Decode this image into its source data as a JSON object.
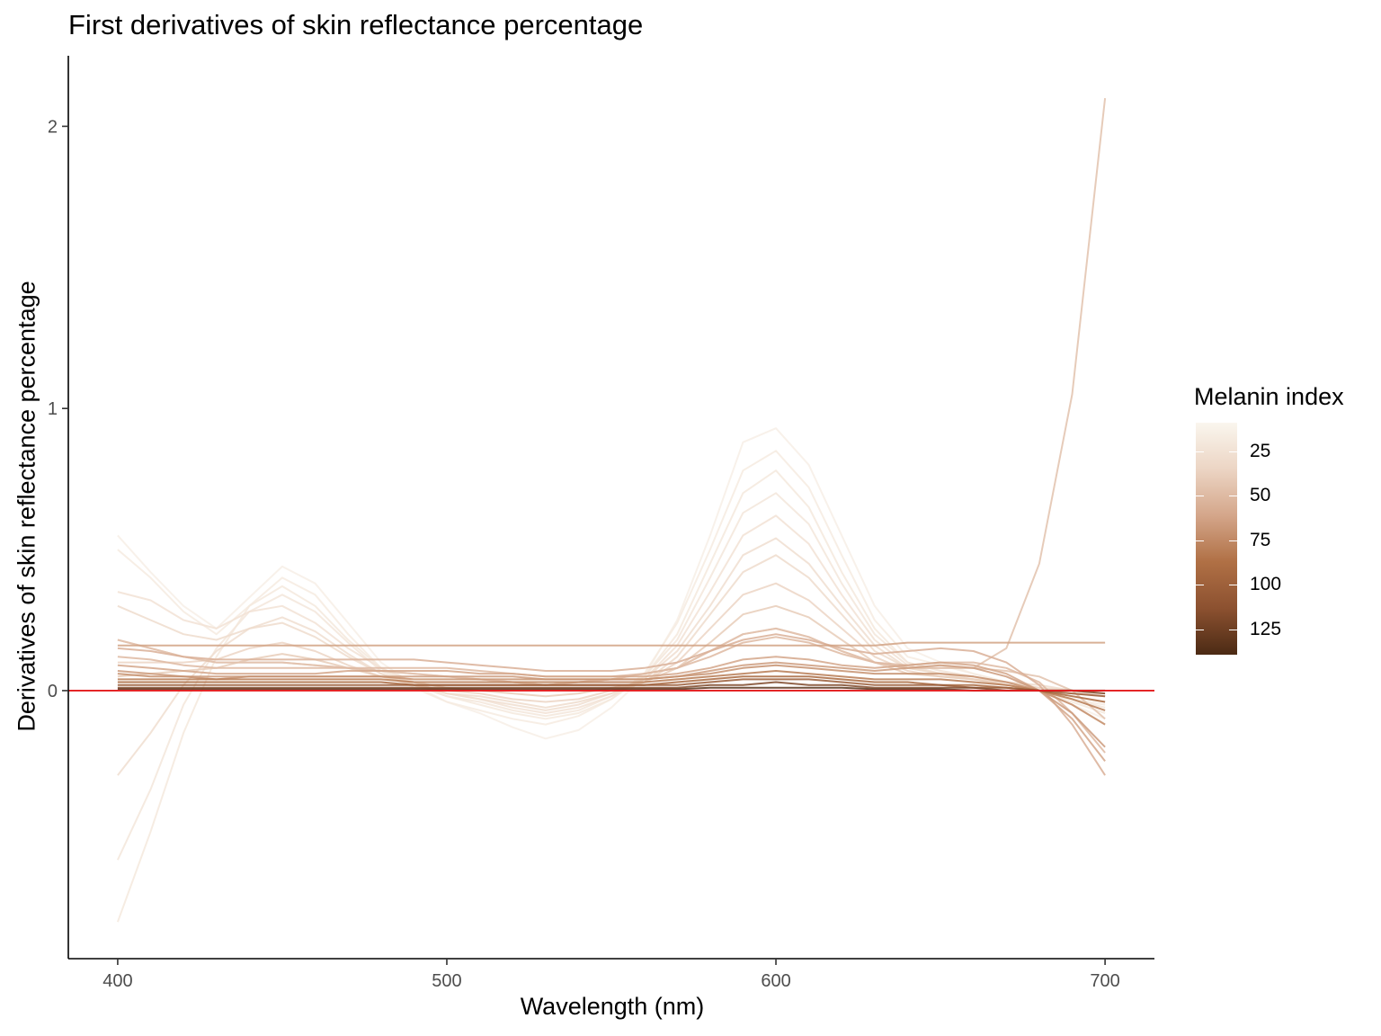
{
  "chart_data": {
    "type": "line",
    "title": "First derivatives of skin reflectance percentage",
    "xlabel": "Wavelength (nm)",
    "ylabel": "Derivatives of skin reflectance percentage",
    "xlim": [
      385,
      715
    ],
    "ylim": [
      -0.95,
      2.25
    ],
    "x_ticks": [
      "400",
      "500",
      "600",
      "700"
    ],
    "y_ticks": [
      "0",
      "1",
      "2"
    ],
    "grid": false,
    "reference_line": {
      "y": 0,
      "color": "#e31a1c"
    },
    "legend": {
      "title": "Melanin index",
      "position": "right",
      "breaks": [
        "25",
        "50",
        "75",
        "100",
        "125"
      ],
      "color_stops": [
        "#faf6ee",
        "#ecd5c4",
        "#d4a68a",
        "#b07045",
        "#8c5130",
        "#4b2a14"
      ]
    },
    "x": [
      400,
      410,
      420,
      430,
      440,
      450,
      460,
      470,
      480,
      490,
      500,
      510,
      520,
      530,
      540,
      550,
      560,
      570,
      580,
      590,
      600,
      610,
      620,
      630,
      640,
      650,
      660,
      670,
      680,
      690,
      700
    ],
    "series": [
      {
        "melanin": 15,
        "values": [
          0.55,
          0.42,
          0.3,
          0.22,
          0.33,
          0.44,
          0.38,
          0.24,
          0.1,
          0.02,
          -0.04,
          -0.08,
          -0.13,
          -0.17,
          -0.14,
          -0.06,
          0.05,
          0.25,
          0.55,
          0.88,
          0.93,
          0.8,
          0.55,
          0.3,
          0.15,
          0.1,
          0.06,
          0.03,
          0.0,
          -0.05,
          -0.1
        ]
      },
      {
        "melanin": 18,
        "values": [
          0.5,
          0.4,
          0.28,
          0.2,
          0.3,
          0.4,
          0.34,
          0.2,
          0.08,
          0.01,
          -0.04,
          -0.07,
          -0.1,
          -0.12,
          -0.09,
          -0.03,
          0.06,
          0.24,
          0.5,
          0.78,
          0.85,
          0.72,
          0.48,
          0.25,
          0.12,
          0.09,
          0.06,
          0.03,
          0.0,
          -0.03,
          -0.05
        ]
      },
      {
        "melanin": 20,
        "values": [
          -0.82,
          -0.5,
          -0.15,
          0.12,
          0.3,
          0.37,
          0.3,
          0.18,
          0.08,
          0.02,
          -0.02,
          -0.05,
          -0.08,
          -0.1,
          -0.08,
          -0.03,
          0.05,
          0.2,
          0.45,
          0.7,
          0.78,
          0.65,
          0.42,
          0.22,
          0.1,
          0.07,
          0.05,
          0.02,
          0.0,
          -0.04,
          -0.08
        ]
      },
      {
        "melanin": 22,
        "values": [
          -0.6,
          -0.35,
          -0.05,
          0.15,
          0.28,
          0.34,
          0.28,
          0.17,
          0.07,
          0.02,
          -0.02,
          -0.04,
          -0.07,
          -0.09,
          -0.07,
          -0.02,
          0.05,
          0.18,
          0.4,
          0.63,
          0.7,
          0.59,
          0.38,
          0.2,
          0.1,
          0.07,
          0.05,
          0.02,
          0.0,
          -0.03,
          -0.06
        ]
      },
      {
        "melanin": 25,
        "values": [
          0.35,
          0.32,
          0.25,
          0.22,
          0.28,
          0.3,
          0.24,
          0.15,
          0.08,
          0.03,
          -0.01,
          -0.03,
          -0.06,
          -0.08,
          -0.06,
          -0.02,
          0.04,
          0.16,
          0.35,
          0.55,
          0.62,
          0.52,
          0.34,
          0.18,
          0.09,
          0.06,
          0.04,
          0.02,
          0.0,
          -0.02,
          -0.04
        ]
      },
      {
        "melanin": 28,
        "values": [
          -0.3,
          -0.15,
          0.02,
          0.14,
          0.22,
          0.26,
          0.21,
          0.13,
          0.06,
          0.02,
          -0.01,
          -0.03,
          -0.05,
          -0.07,
          -0.05,
          -0.01,
          0.04,
          0.14,
          0.3,
          0.48,
          0.54,
          0.45,
          0.3,
          0.16,
          0.08,
          0.06,
          0.04,
          0.02,
          0.01,
          -0.01,
          -0.02
        ]
      },
      {
        "melanin": 30,
        "values": [
          0.3,
          0.25,
          0.2,
          0.18,
          0.22,
          0.24,
          0.19,
          0.12,
          0.06,
          0.02,
          -0.01,
          -0.02,
          -0.04,
          -0.06,
          -0.04,
          -0.01,
          0.03,
          0.12,
          0.27,
          0.42,
          0.48,
          0.4,
          0.27,
          0.14,
          0.08,
          0.06,
          0.05,
          0.03,
          0.02,
          0.0,
          -0.02
        ]
      },
      {
        "melanin": 35,
        "values": [
          0.1,
          0.1,
          0.1,
          0.11,
          0.15,
          0.17,
          0.14,
          0.09,
          0.05,
          0.02,
          0.0,
          -0.01,
          -0.03,
          -0.04,
          -0.03,
          0.0,
          0.03,
          0.1,
          0.22,
          0.34,
          0.38,
          0.32,
          0.22,
          0.12,
          0.07,
          0.05,
          0.04,
          0.03,
          0.01,
          0.0,
          -0.01
        ]
      },
      {
        "melanin": 40,
        "values": [
          0.05,
          0.06,
          0.07,
          0.08,
          0.11,
          0.13,
          0.11,
          0.08,
          0.05,
          0.03,
          0.01,
          0.0,
          -0.01,
          -0.02,
          -0.01,
          0.01,
          0.03,
          0.08,
          0.17,
          0.27,
          0.3,
          0.26,
          0.18,
          0.1,
          0.06,
          0.05,
          0.04,
          0.02,
          0.0,
          -0.05,
          -0.12
        ]
      },
      {
        "melanin": 45,
        "values": [
          0.18,
          0.15,
          0.12,
          0.1,
          0.1,
          0.1,
          0.09,
          0.08,
          0.07,
          0.06,
          0.05,
          0.04,
          0.03,
          0.02,
          0.03,
          0.04,
          0.06,
          0.08,
          0.14,
          0.2,
          0.22,
          0.19,
          0.14,
          0.1,
          0.08,
          0.08,
          0.08,
          0.07,
          0.05,
          0.0,
          -0.1
        ]
      },
      {
        "melanin": 50,
        "values": [
          0.12,
          0.11,
          0.09,
          0.08,
          0.08,
          0.08,
          0.08,
          0.08,
          0.08,
          0.08,
          0.08,
          0.07,
          0.06,
          0.05,
          0.05,
          0.05,
          0.06,
          0.08,
          0.12,
          0.17,
          0.19,
          0.17,
          0.13,
          0.1,
          0.09,
          0.1,
          0.1,
          0.08,
          0.03,
          -0.08,
          -0.22
        ]
      },
      {
        "melanin": 55,
        "values": [
          0.15,
          0.14,
          0.12,
          0.11,
          0.11,
          0.11,
          0.11,
          0.11,
          0.11,
          0.11,
          0.1,
          0.09,
          0.08,
          0.07,
          0.07,
          0.07,
          0.08,
          0.1,
          0.14,
          0.18,
          0.2,
          0.18,
          0.15,
          0.13,
          0.14,
          0.15,
          0.14,
          0.1,
          0.02,
          -0.12,
          -0.3
        ]
      },
      {
        "melanin": 60,
        "values": [
          0.09,
          0.08,
          0.07,
          0.06,
          0.06,
          0.06,
          0.06,
          0.07,
          0.07,
          0.07,
          0.07,
          0.06,
          0.06,
          0.05,
          0.05,
          0.05,
          0.05,
          0.06,
          0.08,
          0.11,
          0.12,
          0.11,
          0.09,
          0.08,
          0.09,
          0.1,
          0.09,
          0.06,
          0.0,
          -0.1,
          -0.25
        ]
      },
      {
        "melanin": 62,
        "values": [
          0.16,
          0.16,
          0.16,
          0.16,
          0.16,
          0.16,
          0.16,
          0.16,
          0.16,
          0.16,
          0.16,
          0.16,
          0.16,
          0.16,
          0.16,
          0.16,
          0.16,
          0.16,
          0.16,
          0.16,
          0.16,
          0.16,
          0.16,
          0.16,
          0.17,
          0.17,
          0.17,
          0.17,
          0.17,
          0.17,
          0.17
        ]
      },
      {
        "melanin": 65,
        "values": [
          0.07,
          0.06,
          0.05,
          0.05,
          0.05,
          0.05,
          0.05,
          0.05,
          0.05,
          0.05,
          0.05,
          0.05,
          0.05,
          0.04,
          0.04,
          0.04,
          0.04,
          0.05,
          0.07,
          0.09,
          0.1,
          0.09,
          0.08,
          0.07,
          0.08,
          0.09,
          0.08,
          0.05,
          0.0,
          -0.08,
          -0.2
        ]
      },
      {
        "melanin": 70,
        "values": [
          0.06,
          0.05,
          0.05,
          0.04,
          0.05,
          0.05,
          0.05,
          0.05,
          0.05,
          0.04,
          0.04,
          0.04,
          0.04,
          0.04,
          0.04,
          0.04,
          0.04,
          0.05,
          0.06,
          0.08,
          0.09,
          0.08,
          0.07,
          0.06,
          0.06,
          0.06,
          0.05,
          0.03,
          0.0,
          -0.05,
          -0.12
        ]
      },
      {
        "melanin": 80,
        "values": [
          0.04,
          0.04,
          0.04,
          0.04,
          0.04,
          0.04,
          0.04,
          0.04,
          0.04,
          0.03,
          0.03,
          0.03,
          0.03,
          0.03,
          0.03,
          0.03,
          0.03,
          0.04,
          0.05,
          0.06,
          0.07,
          0.06,
          0.05,
          0.04,
          0.04,
          0.04,
          0.03,
          0.02,
          0.0,
          -0.03,
          -0.07
        ]
      },
      {
        "melanin": 90,
        "values": [
          0.03,
          0.03,
          0.03,
          0.03,
          0.03,
          0.03,
          0.03,
          0.03,
          0.03,
          0.02,
          0.02,
          0.02,
          0.02,
          0.02,
          0.02,
          0.02,
          0.02,
          0.03,
          0.04,
          0.05,
          0.05,
          0.05,
          0.04,
          0.03,
          0.03,
          0.02,
          0.02,
          0.01,
          0.0,
          -0.02,
          -0.04
        ]
      },
      {
        "melanin": 100,
        "values": [
          0.02,
          0.02,
          0.02,
          0.02,
          0.02,
          0.02,
          0.02,
          0.02,
          0.02,
          0.02,
          0.02,
          0.02,
          0.02,
          0.02,
          0.02,
          0.02,
          0.02,
          0.02,
          0.03,
          0.04,
          0.04,
          0.04,
          0.03,
          0.02,
          0.02,
          0.02,
          0.01,
          0.01,
          0.0,
          -0.01,
          -0.02
        ]
      },
      {
        "melanin": 115,
        "values": [
          0.01,
          0.01,
          0.01,
          0.01,
          0.01,
          0.01,
          0.01,
          0.01,
          0.01,
          0.01,
          0.01,
          0.01,
          0.01,
          0.01,
          0.01,
          0.01,
          0.01,
          0.01,
          0.02,
          0.02,
          0.03,
          0.02,
          0.02,
          0.01,
          0.01,
          0.01,
          0.01,
          0.0,
          0.0,
          0.0,
          -0.01
        ]
      },
      {
        "melanin": 130,
        "values": [
          0.005,
          0.005,
          0.005,
          0.005,
          0.005,
          0.005,
          0.005,
          0.005,
          0.005,
          0.005,
          0.005,
          0.005,
          0.005,
          0.005,
          0.005,
          0.005,
          0.005,
          0.005,
          0.01,
          0.01,
          0.01,
          0.01,
          0.01,
          0.005,
          0.005,
          0.005,
          0.0,
          0.0,
          0.0,
          0.0,
          0.0
        ]
      },
      {
        "melanin": 45,
        "values": [
          0.18,
          0.15,
          0.12,
          0.1,
          0.1,
          0.1,
          0.09,
          0.08,
          0.07,
          0.06,
          0.05,
          0.04,
          0.03,
          0.02,
          0.03,
          0.04,
          0.06,
          0.08,
          0.14,
          0.2,
          0.22,
          0.19,
          0.14,
          0.1,
          0.08,
          0.08,
          0.08,
          0.15,
          0.45,
          1.05,
          2.1
        ]
      }
    ]
  }
}
